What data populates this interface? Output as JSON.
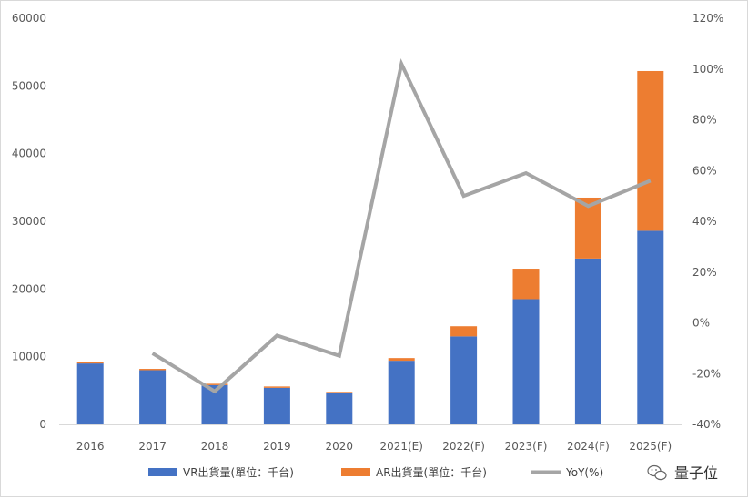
{
  "chart_data": {
    "type": "bar",
    "title": "",
    "xlabel": "",
    "ylabel": "",
    "categories": [
      "2016",
      "2017",
      "2018",
      "2019",
      "2020",
      "2021(E)",
      "2022(F)",
      "2023(F)",
      "2024(F)",
      "2025(F)"
    ],
    "series": [
      {
        "name": "VR出貨量(單位：千台)",
        "type": "bar",
        "stack": "shipments",
        "axis": "left",
        "color": "#4472C4",
        "values": [
          9000,
          8000,
          5800,
          5400,
          4600,
          9400,
          13000,
          18500,
          24500,
          28600
        ]
      },
      {
        "name": "AR出貨量(單位：千台)",
        "type": "bar",
        "stack": "shipments",
        "axis": "left",
        "color": "#ED7D31",
        "values": [
          200,
          200,
          200,
          200,
          200,
          400,
          1500,
          4500,
          9000,
          23600
        ]
      },
      {
        "name": "YoY(%)",
        "type": "line",
        "axis": "right",
        "color": "#A5A5A5",
        "values": [
          null,
          -12,
          -27,
          -5,
          -13,
          102,
          50,
          59,
          46,
          56
        ]
      }
    ],
    "y_left": {
      "min": 0,
      "max": 60000,
      "step": 10000,
      "tick_labels": [
        "0",
        "10000",
        "20000",
        "30000",
        "40000",
        "50000",
        "60000"
      ]
    },
    "y_right": {
      "min": -40,
      "max": 120,
      "step": 20,
      "tick_labels": [
        "-40%",
        "-20%",
        "0%",
        "20%",
        "40%",
        "60%",
        "80%",
        "100%",
        "120%"
      ]
    },
    "grid": false,
    "legend_position": "bottom"
  },
  "watermark": {
    "text": "量子位"
  },
  "colors": {
    "vr": "#4472C4",
    "ar": "#ED7D31",
    "yoy": "#A5A5A5",
    "axis": "#d9d9d9"
  }
}
